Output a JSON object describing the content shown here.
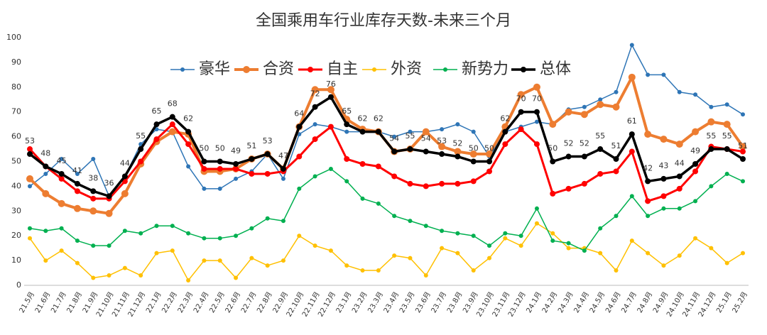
{
  "chart_data": {
    "type": "line",
    "title": "全国乘用车行业库存天数-未来三个月",
    "categories": [
      "21.5月",
      "21.6月",
      "21.7月",
      "21.8月",
      "21.9月",
      "21.10月",
      "21.11月",
      "21.12月",
      "22.1月",
      "22.2月",
      "22.3月",
      "22.4月",
      "22.5月",
      "22.6月",
      "22.7月",
      "22.8月",
      "22.9月",
      "22.10月",
      "22.11月",
      "22.12月",
      "23.1月",
      "23.2月",
      "23.3月",
      "23.4月",
      "23.5月",
      "23.6月",
      "23.7月",
      "23.8月",
      "23.9月",
      "23.10月",
      "23.11月",
      "23.12月",
      "24.1月",
      "24.2月",
      "24.3月",
      "24.4月",
      "24.5月",
      "24.6月",
      "24.7月",
      "24.8月",
      "24.9月",
      "24.10月",
      "24.11月",
      "24.12月",
      "25.1月",
      "25.2月"
    ],
    "series": [
      {
        "name": "豪华",
        "color": "#2e75b6",
        "values": [
          40,
          45,
          51,
          45,
          51,
          36,
          44,
          57,
          63,
          62,
          48,
          39,
          39,
          43,
          46,
          53,
          43,
          61,
          65,
          64,
          62,
          62,
          62,
          60,
          62,
          62,
          63,
          65,
          62,
          52,
          62,
          64,
          66,
          65,
          71,
          72,
          75,
          78,
          97,
          85,
          85,
          78,
          77,
          72,
          73,
          69
        ]
      },
      {
        "name": "合资",
        "color": "#ed7d31",
        "values": [
          43,
          37,
          33,
          31,
          30,
          29,
          37,
          49,
          58,
          62,
          61,
          46,
          46,
          47,
          51,
          53,
          47,
          64,
          79,
          79,
          67,
          63,
          62,
          54,
          55,
          62,
          56,
          54,
          53,
          53,
          64,
          77,
          80,
          65,
          70,
          69,
          73,
          72,
          84,
          61,
          59,
          57,
          62,
          66,
          65,
          56
        ]
      },
      {
        "name": "自主",
        "color": "#ff0000",
        "values": [
          55,
          48,
          43,
          38,
          35,
          35,
          42,
          50,
          59,
          65,
          57,
          47,
          47,
          47,
          45,
          45,
          46,
          52,
          59,
          64,
          51,
          49,
          48,
          44,
          41,
          40,
          41,
          41,
          42,
          46,
          57,
          63,
          57,
          37,
          39,
          41,
          45,
          46,
          54,
          34,
          36,
          39,
          46,
          56,
          55,
          54
        ]
      },
      {
        "name": "外资",
        "color": "#ffc000",
        "values": [
          19,
          10,
          14,
          9,
          3,
          4,
          7,
          4,
          13,
          14,
          2,
          10,
          10,
          3,
          11,
          8,
          10,
          20,
          16,
          14,
          8,
          6,
          6,
          12,
          11,
          4,
          15,
          13,
          6,
          11,
          19,
          16,
          25,
          21,
          15,
          15,
          13,
          6,
          18,
          13,
          8,
          12,
          19,
          15,
          9,
          13
        ]
      },
      {
        "name": "新势力",
        "color": "#00b050",
        "values": [
          23,
          22,
          23,
          18,
          16,
          16,
          22,
          21,
          24,
          24,
          21,
          19,
          19,
          20,
          23,
          27,
          26,
          39,
          44,
          47,
          42,
          35,
          33,
          28,
          26,
          24,
          22,
          21,
          20,
          16,
          21,
          20,
          31,
          18,
          17,
          14,
          23,
          28,
          36,
          28,
          31,
          31,
          34,
          40,
          45,
          42
        ]
      },
      {
        "name": "总体",
        "color": "#000000",
        "labeled": true,
        "values": [
          53,
          48,
          45,
          41,
          38,
          36,
          44,
          55,
          65,
          68,
          62,
          50,
          50,
          49,
          51,
          53,
          47,
          64,
          72,
          76,
          65,
          62,
          62,
          54,
          55,
          54,
          53,
          52,
          50,
          50,
          62,
          70,
          70,
          50,
          52,
          52,
          55,
          51,
          61,
          42,
          43,
          44,
          49,
          55,
          55,
          51
        ]
      }
    ],
    "ylim": [
      0,
      100
    ],
    "yticks": [
      0,
      10,
      20,
      30,
      40,
      50,
      60,
      70,
      80,
      90,
      100
    ],
    "grid": false,
    "legend": "top"
  }
}
